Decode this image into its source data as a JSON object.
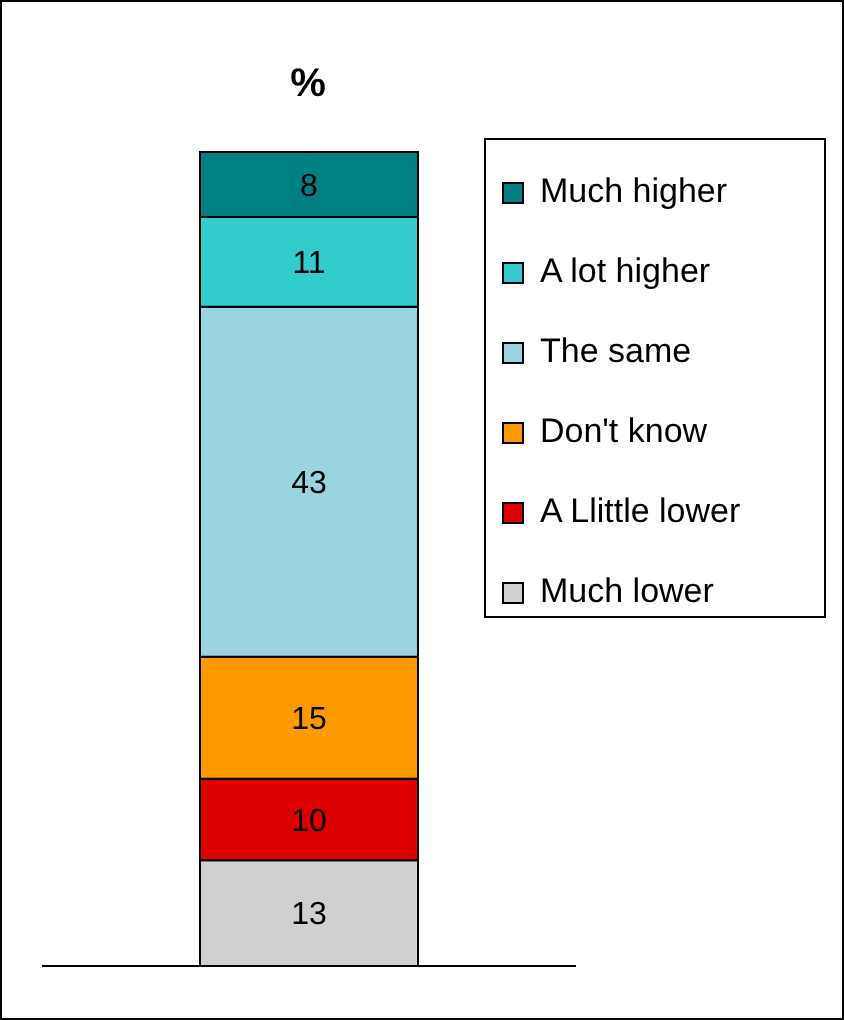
{
  "chart_data": {
    "type": "bar",
    "title": "%",
    "categories": [
      null
    ],
    "stacked": true,
    "data_labels": true,
    "legend": "right",
    "grid": false,
    "series": [
      {
        "name": "Much lower",
        "color": "#d0d0d0",
        "values": [
          13
        ]
      },
      {
        "name": "A Llittle lower",
        "color": "#dd0000",
        "values": [
          10
        ]
      },
      {
        "name": "Don't know",
        "color": "#ff9900",
        "values": [
          15
        ]
      },
      {
        "name": "The same",
        "color": "#9ad4e0",
        "values": [
          43
        ]
      },
      {
        "name": "A lot higher",
        "color": "#33cccc",
        "values": [
          11
        ]
      },
      {
        "name": "Much higher",
        "color": "#008080",
        "values": [
          8
        ]
      }
    ]
  }
}
